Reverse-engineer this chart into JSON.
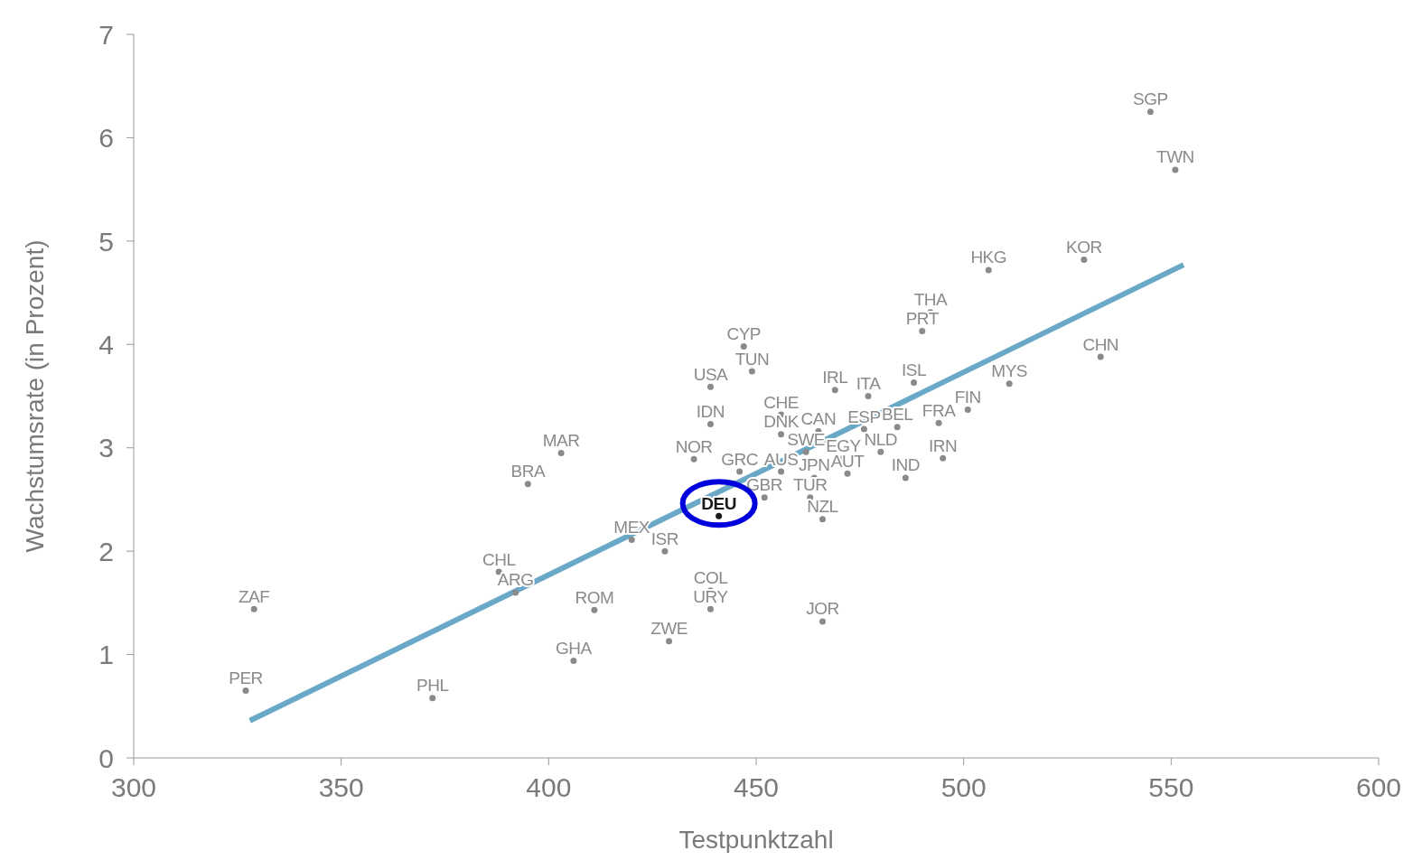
{
  "chart_data": {
    "type": "scatter",
    "xlabel": "Testpunktzahl",
    "ylabel": "Wachstumsrate (in Prozent)",
    "xlim": [
      300,
      600
    ],
    "xticks": [
      300,
      350,
      400,
      450,
      500,
      550,
      600
    ],
    "ylim": [
      0,
      7
    ],
    "yticks": [
      0,
      1,
      2,
      3,
      4,
      5,
      6,
      7
    ],
    "marker": "circle",
    "series": [
      {
        "type": "line",
        "marker": "none",
        "color": "#6aa8c8",
        "x": [
          328,
          553
        ],
        "values": [
          0.36,
          4.77
        ]
      },
      {
        "color": "#8a8a8a",
        "x": [
          545,
          551,
          529,
          506,
          492,
          490,
          533,
          447,
          449,
          439,
          469,
          477,
          488,
          511,
          501,
          439,
          456,
          456,
          465,
          476,
          484,
          494,
          462,
          471,
          480,
          495,
          403,
          435,
          446,
          456,
          464,
          472,
          486,
          395,
          452,
          463,
          466,
          420,
          428,
          388,
          392,
          439,
          439,
          411,
          329,
          466,
          429,
          406,
          327,
          372
        ],
        "values": [
          6.25,
          5.69,
          4.82,
          4.72,
          4.31,
          4.13,
          3.88,
          3.98,
          3.74,
          3.59,
          3.56,
          3.5,
          3.63,
          3.62,
          3.37,
          3.23,
          3.32,
          3.13,
          3.16,
          3.18,
          3.2,
          3.24,
          2.96,
          2.9,
          2.96,
          2.9,
          2.95,
          2.89,
          2.77,
          2.77,
          2.71,
          2.75,
          2.71,
          2.65,
          2.52,
          2.52,
          2.31,
          2.11,
          2.0,
          1.8,
          1.6,
          1.62,
          1.44,
          1.43,
          1.44,
          1.32,
          1.13,
          0.94,
          0.65,
          0.58
        ],
        "value_labels": [
          "SGP",
          "TWN",
          "KOR",
          "HKG",
          "THA",
          "PRT",
          "CHN",
          "CYP",
          "TUN",
          "USA",
          "IRL",
          "ITA",
          "ISL",
          "MYS",
          "FIN",
          "IDN",
          "CHE",
          "DNK",
          "CAN",
          "ESP",
          "BEL",
          "FRA",
          "SWE",
          "EGY",
          "NLD",
          "IRN",
          "MAR",
          "NOR",
          "GRC",
          "AUS",
          "JPN",
          "AUT",
          "IND",
          "BRA",
          "GBR",
          "TUR",
          "NZL",
          "MEX",
          "ISR",
          "CHL",
          "ARG",
          "COL",
          "URY",
          "ROM",
          "ZAF",
          "JOR",
          "ZWE",
          "GHA",
          "PER",
          "PHL"
        ]
      },
      {
        "color": "#1a1a1a",
        "x": [
          441
        ],
        "values": [
          2.34
        ],
        "value_labels": [
          "DEU"
        ]
      }
    ]
  }
}
